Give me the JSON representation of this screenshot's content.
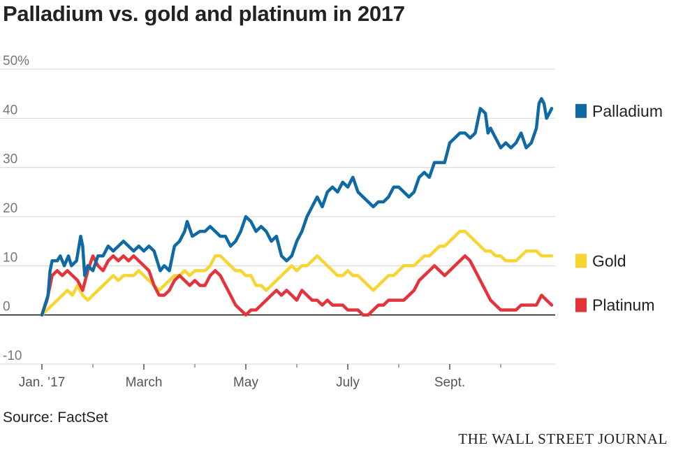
{
  "source": "Source: FactSet",
  "credit": "THE WALL STREET JOURNAL",
  "chart_data": {
    "type": "line",
    "title": "Palladium vs. gold and platinum in 2017",
    "xlabel": "",
    "ylabel": "",
    "ylim": [
      -10,
      50
    ],
    "xlim": [
      0,
      1.0
    ],
    "y_ticks": [
      {
        "value": 50,
        "label": "50%"
      },
      {
        "value": 40,
        "label": "40"
      },
      {
        "value": 30,
        "label": "30"
      },
      {
        "value": 20,
        "label": "20"
      },
      {
        "value": 10,
        "label": "10"
      },
      {
        "value": 0,
        "label": "0"
      },
      {
        "value": -10,
        "label": "-10"
      }
    ],
    "x_ticks": [
      {
        "value": 0.0,
        "label": "Jan. ’17"
      },
      {
        "value": 0.2,
        "label": "March"
      },
      {
        "value": 0.4,
        "label": "May"
      },
      {
        "value": 0.6,
        "label": "July"
      },
      {
        "value": 0.8,
        "label": "Sept."
      }
    ],
    "x_minor_ticks": [
      0.1,
      0.3,
      0.5,
      0.7,
      0.9
    ],
    "grid": true,
    "series": [
      {
        "name": "Palladium",
        "color": "#0f6aa3",
        "points": [
          [
            0,
            0
          ],
          [
            0.012,
            4
          ],
          [
            0.016,
            9
          ],
          [
            0.02,
            11
          ],
          [
            0.03,
            11
          ],
          [
            0.036,
            12
          ],
          [
            0.044,
            10
          ],
          [
            0.052,
            12
          ],
          [
            0.058,
            10
          ],
          [
            0.068,
            11
          ],
          [
            0.076,
            16
          ],
          [
            0.08,
            14
          ],
          [
            0.084,
            8
          ],
          [
            0.09,
            10
          ],
          [
            0.1,
            9
          ],
          [
            0.11,
            12
          ],
          [
            0.12,
            12
          ],
          [
            0.13,
            14
          ],
          [
            0.14,
            13
          ],
          [
            0.15,
            14
          ],
          [
            0.16,
            15
          ],
          [
            0.17,
            14
          ],
          [
            0.18,
            13
          ],
          [
            0.19,
            14
          ],
          [
            0.2,
            13
          ],
          [
            0.21,
            14
          ],
          [
            0.22,
            13
          ],
          [
            0.232,
            9
          ],
          [
            0.24,
            10
          ],
          [
            0.25,
            9
          ],
          [
            0.26,
            14
          ],
          [
            0.27,
            15
          ],
          [
            0.28,
            17
          ],
          [
            0.285,
            19
          ],
          [
            0.295,
            16
          ],
          [
            0.31,
            17
          ],
          [
            0.32,
            17
          ],
          [
            0.33,
            18
          ],
          [
            0.34,
            17
          ],
          [
            0.35,
            16
          ],
          [
            0.36,
            16
          ],
          [
            0.37,
            14
          ],
          [
            0.38,
            15
          ],
          [
            0.39,
            17
          ],
          [
            0.4,
            20
          ],
          [
            0.41,
            19
          ],
          [
            0.42,
            17
          ],
          [
            0.43,
            18
          ],
          [
            0.44,
            17
          ],
          [
            0.45,
            15
          ],
          [
            0.46,
            16
          ],
          [
            0.47,
            12
          ],
          [
            0.48,
            11
          ],
          [
            0.49,
            12
          ],
          [
            0.5,
            15
          ],
          [
            0.51,
            17
          ],
          [
            0.52,
            20
          ],
          [
            0.53,
            22
          ],
          [
            0.54,
            24
          ],
          [
            0.55,
            22
          ],
          [
            0.56,
            25
          ],
          [
            0.57,
            26
          ],
          [
            0.58,
            25
          ],
          [
            0.59,
            27
          ],
          [
            0.6,
            26
          ],
          [
            0.61,
            28
          ],
          [
            0.62,
            25
          ],
          [
            0.63,
            24
          ],
          [
            0.64,
            23
          ],
          [
            0.65,
            22
          ],
          [
            0.66,
            23
          ],
          [
            0.67,
            23
          ],
          [
            0.68,
            24
          ],
          [
            0.69,
            26
          ],
          [
            0.7,
            26
          ],
          [
            0.71,
            25
          ],
          [
            0.72,
            24
          ],
          [
            0.73,
            25
          ],
          [
            0.74,
            28
          ],
          [
            0.75,
            29
          ],
          [
            0.76,
            28
          ],
          [
            0.77,
            31
          ],
          [
            0.78,
            31
          ],
          [
            0.79,
            31
          ],
          [
            0.8,
            35
          ],
          [
            0.81,
            36
          ],
          [
            0.82,
            37
          ],
          [
            0.83,
            37
          ],
          [
            0.84,
            36
          ],
          [
            0.85,
            37
          ],
          [
            0.86,
            42
          ],
          [
            0.87,
            41
          ],
          [
            0.875,
            37
          ],
          [
            0.88,
            38
          ],
          [
            0.89,
            36
          ],
          [
            0.9,
            34
          ],
          [
            0.91,
            35
          ],
          [
            0.92,
            34
          ],
          [
            0.93,
            35
          ],
          [
            0.94,
            37
          ],
          [
            0.95,
            34
          ],
          [
            0.96,
            35
          ],
          [
            0.97,
            38
          ],
          [
            0.975,
            43
          ],
          [
            0.98,
            44
          ],
          [
            0.985,
            43
          ],
          [
            0.99,
            40
          ],
          [
            1.0,
            42
          ]
        ]
      },
      {
        "name": "Gold",
        "color": "#f6d535",
        "points": [
          [
            0,
            0
          ],
          [
            0.01,
            1
          ],
          [
            0.02,
            2
          ],
          [
            0.03,
            3
          ],
          [
            0.04,
            4
          ],
          [
            0.05,
            5
          ],
          [
            0.06,
            4
          ],
          [
            0.07,
            6
          ],
          [
            0.08,
            4
          ],
          [
            0.09,
            3
          ],
          [
            0.1,
            4
          ],
          [
            0.11,
            5
          ],
          [
            0.12,
            6
          ],
          [
            0.13,
            7
          ],
          [
            0.14,
            8
          ],
          [
            0.15,
            7
          ],
          [
            0.16,
            8
          ],
          [
            0.17,
            8
          ],
          [
            0.18,
            8
          ],
          [
            0.19,
            9
          ],
          [
            0.2,
            8
          ],
          [
            0.21,
            7
          ],
          [
            0.22,
            6
          ],
          [
            0.23,
            5
          ],
          [
            0.24,
            6
          ],
          [
            0.25,
            7
          ],
          [
            0.26,
            8
          ],
          [
            0.27,
            8
          ],
          [
            0.28,
            9
          ],
          [
            0.29,
            8
          ],
          [
            0.3,
            9
          ],
          [
            0.31,
            9
          ],
          [
            0.32,
            9
          ],
          [
            0.33,
            10
          ],
          [
            0.34,
            12
          ],
          [
            0.35,
            12
          ],
          [
            0.36,
            11
          ],
          [
            0.37,
            10
          ],
          [
            0.38,
            9
          ],
          [
            0.39,
            9
          ],
          [
            0.4,
            8
          ],
          [
            0.41,
            8
          ],
          [
            0.42,
            6
          ],
          [
            0.43,
            6
          ],
          [
            0.44,
            5
          ],
          [
            0.45,
            6
          ],
          [
            0.46,
            7
          ],
          [
            0.47,
            8
          ],
          [
            0.48,
            9
          ],
          [
            0.49,
            10
          ],
          [
            0.5,
            9
          ],
          [
            0.51,
            10
          ],
          [
            0.52,
            10
          ],
          [
            0.53,
            11
          ],
          [
            0.54,
            12
          ],
          [
            0.55,
            11
          ],
          [
            0.56,
            10
          ],
          [
            0.57,
            9
          ],
          [
            0.58,
            8
          ],
          [
            0.59,
            8
          ],
          [
            0.6,
            9
          ],
          [
            0.61,
            8
          ],
          [
            0.62,
            8
          ],
          [
            0.63,
            7
          ],
          [
            0.64,
            6
          ],
          [
            0.65,
            5
          ],
          [
            0.66,
            6
          ],
          [
            0.67,
            7
          ],
          [
            0.68,
            8
          ],
          [
            0.69,
            8
          ],
          [
            0.7,
            9
          ],
          [
            0.71,
            10
          ],
          [
            0.72,
            10
          ],
          [
            0.73,
            10
          ],
          [
            0.74,
            11
          ],
          [
            0.75,
            12
          ],
          [
            0.76,
            12
          ],
          [
            0.77,
            13
          ],
          [
            0.78,
            14
          ],
          [
            0.79,
            14
          ],
          [
            0.8,
            15
          ],
          [
            0.81,
            16
          ],
          [
            0.82,
            17
          ],
          [
            0.83,
            17
          ],
          [
            0.84,
            16
          ],
          [
            0.85,
            15
          ],
          [
            0.86,
            14
          ],
          [
            0.87,
            13
          ],
          [
            0.88,
            13
          ],
          [
            0.89,
            12
          ],
          [
            0.9,
            12
          ],
          [
            0.91,
            11
          ],
          [
            0.92,
            11
          ],
          [
            0.93,
            11
          ],
          [
            0.94,
            12
          ],
          [
            0.95,
            13
          ],
          [
            0.96,
            13
          ],
          [
            0.97,
            13
          ],
          [
            0.98,
            12
          ],
          [
            0.99,
            12
          ],
          [
            1.0,
            12
          ]
        ]
      },
      {
        "name": "Platinum",
        "color": "#e3343b",
        "points": [
          [
            0,
            0
          ],
          [
            0.01,
            3
          ],
          [
            0.016,
            6
          ],
          [
            0.02,
            8
          ],
          [
            0.03,
            9
          ],
          [
            0.04,
            8
          ],
          [
            0.05,
            9
          ],
          [
            0.06,
            8
          ],
          [
            0.07,
            7
          ],
          [
            0.08,
            5
          ],
          [
            0.09,
            9
          ],
          [
            0.1,
            12
          ],
          [
            0.11,
            10
          ],
          [
            0.12,
            9
          ],
          [
            0.13,
            11
          ],
          [
            0.14,
            12
          ],
          [
            0.15,
            11
          ],
          [
            0.16,
            12
          ],
          [
            0.17,
            11
          ],
          [
            0.18,
            12
          ],
          [
            0.19,
            11
          ],
          [
            0.2,
            10
          ],
          [
            0.21,
            9
          ],
          [
            0.22,
            6
          ],
          [
            0.23,
            4
          ],
          [
            0.24,
            4
          ],
          [
            0.25,
            5
          ],
          [
            0.26,
            7
          ],
          [
            0.27,
            8
          ],
          [
            0.28,
            7
          ],
          [
            0.29,
            6
          ],
          [
            0.3,
            7
          ],
          [
            0.31,
            6
          ],
          [
            0.32,
            6
          ],
          [
            0.33,
            8
          ],
          [
            0.34,
            9
          ],
          [
            0.35,
            8
          ],
          [
            0.36,
            6
          ],
          [
            0.37,
            4
          ],
          [
            0.38,
            2
          ],
          [
            0.39,
            1
          ],
          [
            0.4,
            0
          ],
          [
            0.41,
            1
          ],
          [
            0.42,
            1
          ],
          [
            0.43,
            2
          ],
          [
            0.44,
            3
          ],
          [
            0.45,
            4
          ],
          [
            0.46,
            5
          ],
          [
            0.47,
            4
          ],
          [
            0.48,
            5
          ],
          [
            0.49,
            4
          ],
          [
            0.5,
            3
          ],
          [
            0.51,
            5
          ],
          [
            0.52,
            4
          ],
          [
            0.53,
            3
          ],
          [
            0.54,
            3
          ],
          [
            0.55,
            2
          ],
          [
            0.56,
            3
          ],
          [
            0.57,
            2
          ],
          [
            0.58,
            2
          ],
          [
            0.59,
            2
          ],
          [
            0.6,
            1
          ],
          [
            0.61,
            1
          ],
          [
            0.62,
            1
          ],
          [
            0.63,
            0
          ],
          [
            0.64,
            0
          ],
          [
            0.65,
            1
          ],
          [
            0.66,
            2
          ],
          [
            0.67,
            2
          ],
          [
            0.68,
            3
          ],
          [
            0.69,
            3
          ],
          [
            0.7,
            3
          ],
          [
            0.71,
            3
          ],
          [
            0.72,
            4
          ],
          [
            0.73,
            5
          ],
          [
            0.74,
            7
          ],
          [
            0.75,
            8
          ],
          [
            0.76,
            9
          ],
          [
            0.77,
            10
          ],
          [
            0.78,
            9
          ],
          [
            0.79,
            8
          ],
          [
            0.8,
            9
          ],
          [
            0.81,
            10
          ],
          [
            0.82,
            11
          ],
          [
            0.83,
            12
          ],
          [
            0.84,
            11
          ],
          [
            0.85,
            9
          ],
          [
            0.86,
            7
          ],
          [
            0.87,
            5
          ],
          [
            0.88,
            3
          ],
          [
            0.89,
            2
          ],
          [
            0.9,
            1
          ],
          [
            0.91,
            1
          ],
          [
            0.92,
            1
          ],
          [
            0.93,
            1
          ],
          [
            0.94,
            2
          ],
          [
            0.95,
            2
          ],
          [
            0.96,
            2
          ],
          [
            0.97,
            2
          ],
          [
            0.98,
            4
          ],
          [
            0.99,
            3
          ],
          [
            1.0,
            2
          ]
        ]
      }
    ]
  }
}
